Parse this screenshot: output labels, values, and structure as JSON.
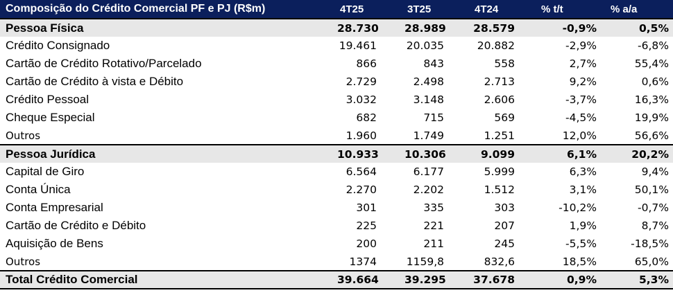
{
  "table": {
    "headers": [
      "Composição do Crédito Comercial PF e PJ (R$m)",
      "4T25",
      "3T25",
      "4T24",
      "% t/t",
      "% a/a"
    ],
    "rows": [
      {
        "type": "section",
        "label": "Pessoa Física",
        "values": [
          "28.730",
          "28.989",
          "28.579",
          "-0,9%",
          "0,5%"
        ]
      },
      {
        "type": "item",
        "label": "Crédito Consignado",
        "values": [
          "19.461",
          "20.035",
          "20.882",
          "-2,9%",
          "-6,8%"
        ]
      },
      {
        "type": "item",
        "label": "Cartão de Crédito Rotativo/Parcelado",
        "values": [
          "866",
          "843",
          "558",
          "2,7%",
          "55,4%"
        ]
      },
      {
        "type": "item",
        "label": "Cartão de Crédito à vista e Débito",
        "values": [
          "2.729",
          "2.498",
          "2.713",
          "9,2%",
          "0,6%"
        ]
      },
      {
        "type": "item",
        "label": "Crédito Pessoal",
        "values": [
          "3.032",
          "3.148",
          "2.606",
          "-3,7%",
          "16,3%"
        ]
      },
      {
        "type": "item",
        "label": "Cheque Especial",
        "values": [
          "682",
          "715",
          "569",
          "-4,5%",
          "19,9%"
        ]
      },
      {
        "type": "small",
        "label": "Outros",
        "values": [
          "1.960",
          "1.749",
          "1.251",
          "12,0%",
          "56,6%"
        ]
      },
      {
        "type": "section",
        "label": "Pessoa Jurídica",
        "values": [
          "10.933",
          "10.306",
          "9.099",
          "6,1%",
          "20,2%"
        ]
      },
      {
        "type": "item",
        "label": "Capital de Giro",
        "values": [
          "6.564",
          "6.177",
          "5.999",
          "6,3%",
          "9,4%"
        ]
      },
      {
        "type": "item",
        "label": "Conta Única",
        "values": [
          "2.270",
          "2.202",
          "1.512",
          "3,1%",
          "50,1%"
        ]
      },
      {
        "type": "item",
        "label": "Conta Empresarial",
        "values": [
          "301",
          "335",
          "303",
          "-10,2%",
          "-0,7%"
        ]
      },
      {
        "type": "item",
        "label": "Cartão de Crédito e Débito",
        "values": [
          "225",
          "221",
          "207",
          "1,9%",
          "8,7%"
        ]
      },
      {
        "type": "item",
        "label": "Aquisição de Bens",
        "values": [
          "200",
          "211",
          "245",
          "-5,5%",
          "-18,5%"
        ]
      },
      {
        "type": "small",
        "label": "Outros",
        "values": [
          "1374",
          "1159,8",
          "832,6",
          "18,5%",
          "65,0%"
        ]
      },
      {
        "type": "total",
        "label": "Total Crédito Comercial",
        "values": [
          "39.664",
          "39.295",
          "37.678",
          "0,9%",
          "5,3%"
        ]
      }
    ]
  },
  "colors": {
    "header_bg": "#0b1f5c",
    "header_text": "#ffffff",
    "section_bg": "#e7e7e7"
  }
}
